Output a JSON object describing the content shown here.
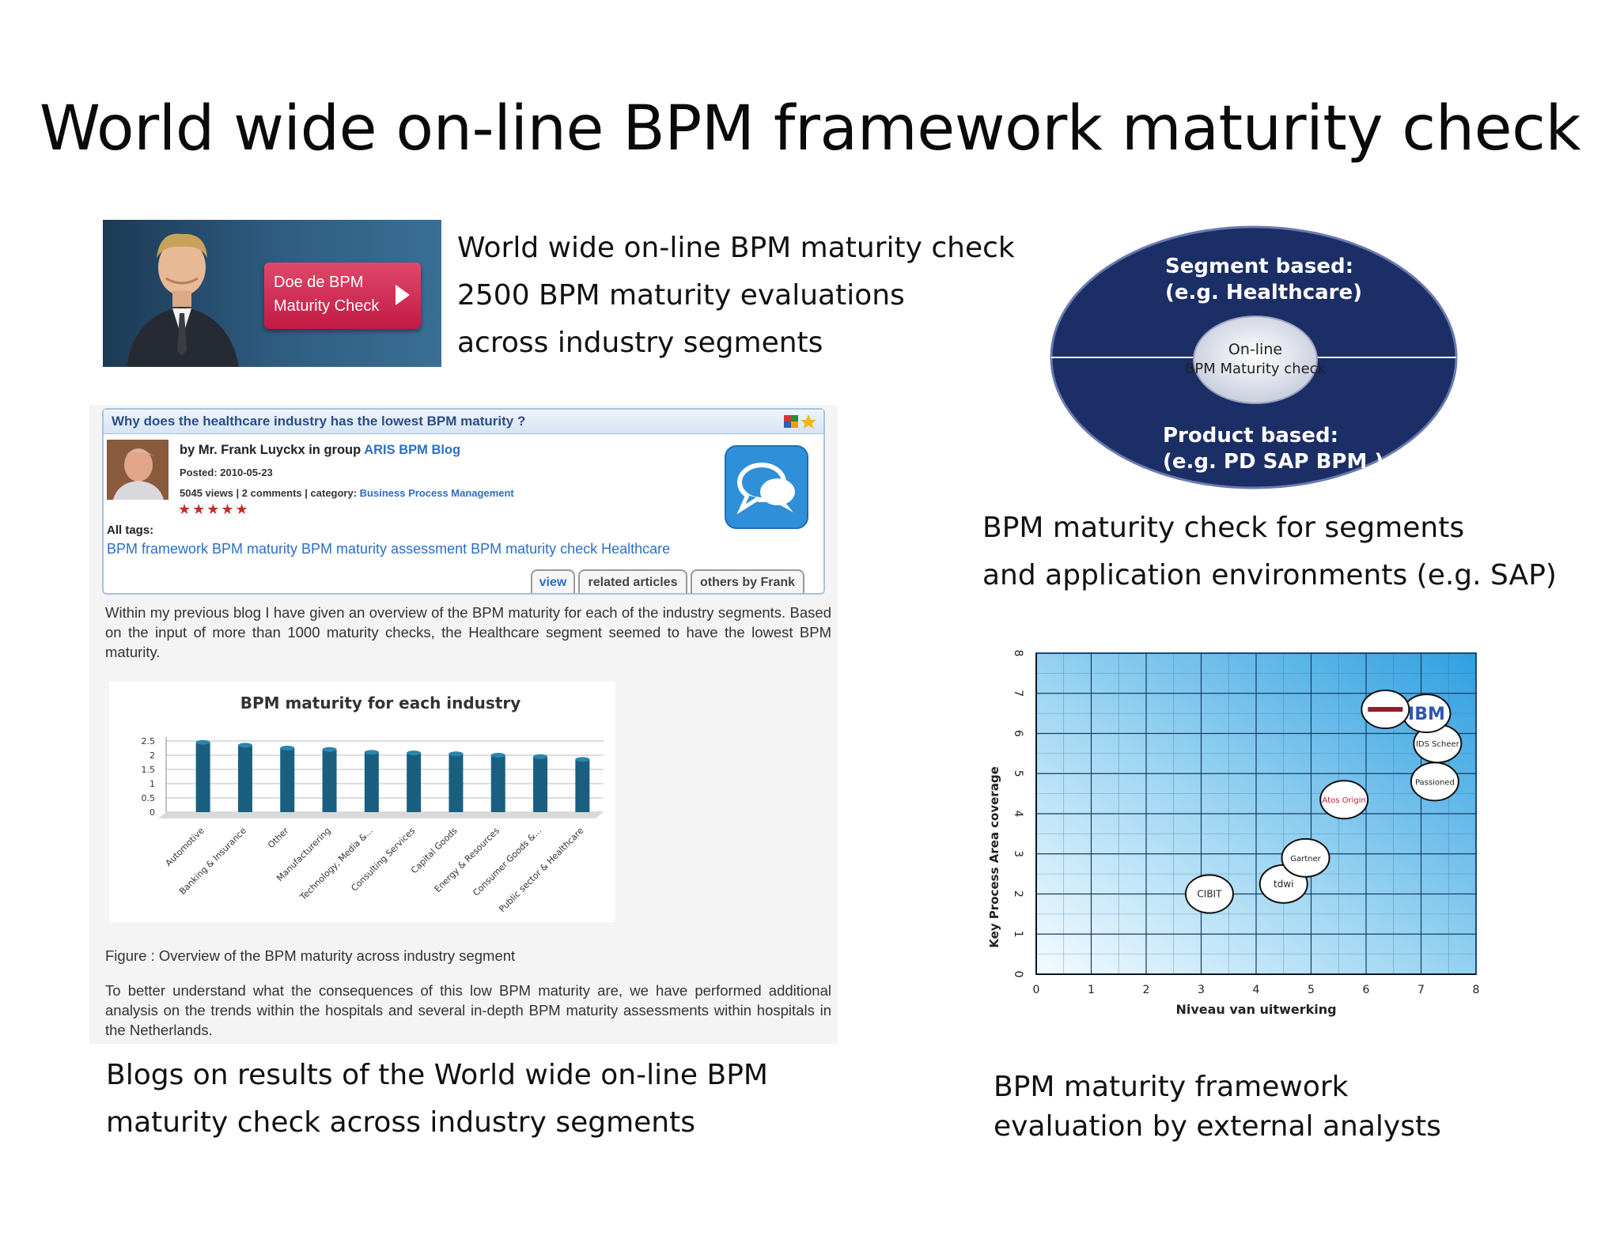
{
  "slide": {
    "title": "World wide on-line BPM framework maturity check"
  },
  "banner": {
    "button_line1": "Doe de BPM",
    "button_line2": "Maturity Check"
  },
  "intro_caption": {
    "line1": "World wide on-line BPM maturity check",
    "line2": "2500 BPM maturity evaluations",
    "line3": "across industry segments"
  },
  "oval": {
    "segment_line1": "Segment based:",
    "segment_line2": "(e.g. Healthcare)",
    "center_line1": "On-line",
    "center_line2": "BPM Maturity check",
    "product_line1": "Product based:",
    "product_line2": "(e.g. PD SAP BPM )",
    "colors": {
      "dark": "#1b2e66",
      "center": "#d5d9e6"
    }
  },
  "segments_caption": {
    "line1": "BPM maturity check for segments",
    "line2": "and  application environments (e.g. SAP)"
  },
  "blog": {
    "question": "Why does the healthcare industry has the lowest BPM maturity ?",
    "author_prefix": "by Mr. Frank Luyckx in group",
    "group": "ARIS BPM Blog",
    "posted": "Posted: 2010-05-23",
    "stats": "5045 views | 2 comments | category:",
    "category": "Business Process Management",
    "stars": "★★★★★",
    "tags_label": "All tags:",
    "tags": "BPM framework BPM maturity BPM maturity assessment BPM maturity check Healthcare",
    "tabs": [
      "view",
      "related articles",
      "others by Frank"
    ],
    "paragraph1": "Within my previous blog I have given an overview of the BPM maturity for each of the industry segments. Based on the input of more than 1000 maturity checks, the Healthcare segment seemed to have the lowest BPM maturity.",
    "figure_caption": "Figure : Overview of the BPM maturity across industry segment",
    "paragraph2": "To better understand what the consequences of this low BPM maturity are, we have performed additional analysis on the trends within the hospitals and several in-depth BPM maturity assessments within hospitals in the Netherlands."
  },
  "blogs_caption": {
    "line1": "Blogs on results of the World wide on-line BPM",
    "line2": "maturity check across industry segments"
  },
  "analysts_caption": {
    "line1": "BPM maturity framework",
    "line2": "evaluation by external analysts"
  },
  "chart_data": [
    {
      "type": "bar",
      "title": "BPM maturity for each industry",
      "categories": [
        "Automotive",
        "Banking & Insurance",
        "Other",
        "Manufacturering",
        "Technology, Media &...",
        "Consulting Services",
        "Capital Goods",
        "Energy & Resources",
        "Consumer Goods &...",
        "Public sector & Healthcare"
      ],
      "values": [
        2.45,
        2.35,
        2.25,
        2.2,
        2.1,
        2.08,
        2.05,
        2.0,
        1.95,
        1.85
      ],
      "yticks": [
        "0",
        "0.5",
        "1",
        "1.5",
        "2",
        "2.5"
      ],
      "ylim": [
        0,
        2.5
      ],
      "color": "#1a5f80"
    },
    {
      "type": "scatter",
      "xlabel": "Niveau van uitwerking",
      "ylabel": "Key Process Area coverage",
      "xlim": [
        0,
        8
      ],
      "ylim": [
        0,
        8
      ],
      "xticks": [
        "0",
        "1",
        "2",
        "3",
        "4",
        "5",
        "6",
        "7",
        "8"
      ],
      "yticks": [
        "0",
        "1",
        "2",
        "3",
        "4",
        "5",
        "6",
        "7",
        "8"
      ],
      "points": [
        {
          "label": "CIBIT",
          "x": 3.15,
          "y": 2.0
        },
        {
          "label": "tdwi",
          "x": 4.5,
          "y": 2.25
        },
        {
          "label": "Gartner",
          "x": 4.9,
          "y": 2.9
        },
        {
          "label": "Atos Origin",
          "x": 5.6,
          "y": 4.35
        },
        {
          "label": "Passioned",
          "x": 7.25,
          "y": 4.8
        },
        {
          "label": "IDS Scheer",
          "x": 7.3,
          "y": 5.75
        },
        {
          "label": "IBM",
          "x": 7.1,
          "y": 6.5
        },
        {
          "label": "",
          "x": 6.35,
          "y": 6.6
        }
      ]
    }
  ]
}
